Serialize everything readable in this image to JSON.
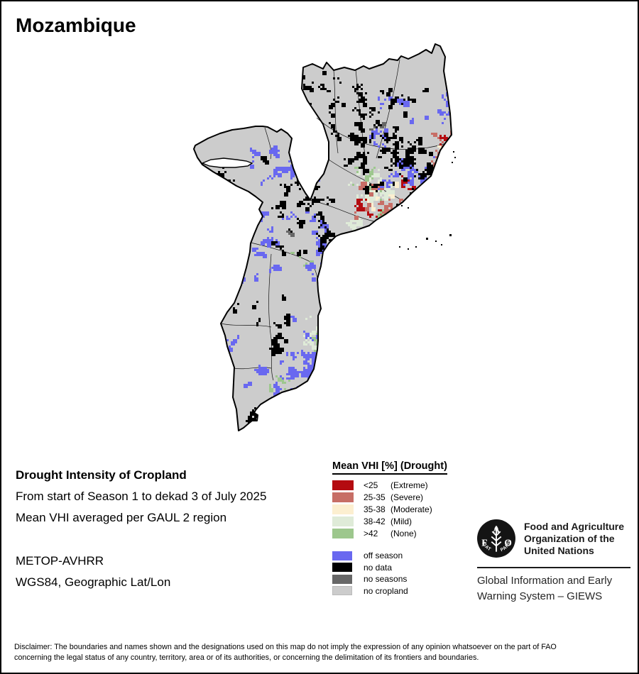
{
  "title": "Mozambique",
  "map": {
    "country": "Mozambique",
    "land_color": "#cccccc",
    "boundary_color": "#000000",
    "water_color": "#ffffff"
  },
  "info": {
    "heading": "Drought Intensity of Cropland",
    "line1": "From start of Season 1 to dekad 3 of July 2025",
    "line2": "Mean VHI averaged per GAUL 2 region",
    "sensor": "METOP-AVHRR",
    "projection": "WGS84, Geographic Lat/Lon"
  },
  "legend": {
    "title": "Mean VHI [%] (Drought)",
    "classes": [
      {
        "value": "<25",
        "label": "(Extreme)",
        "color": "#b40b10"
      },
      {
        "value": "25-35",
        "label": "(Severe)",
        "color": "#c76e66"
      },
      {
        "value": "35-38",
        "label": "(Moderate)",
        "color": "#fcefd0"
      },
      {
        "value": "38-42",
        "label": "(Mild)",
        "color": "#dfebd8"
      },
      {
        "value": ">42",
        "label": "(None)",
        "color": "#9dc78d"
      }
    ],
    "extra": [
      {
        "label": "off season",
        "color": "#6968f0"
      },
      {
        "label": "no data",
        "color": "#000000"
      },
      {
        "label": "no seasons",
        "color": "#676767"
      },
      {
        "label": "no cropland",
        "color": "#cccccc"
      }
    ]
  },
  "footer": {
    "org_line1": "Food and Agriculture",
    "org_line2": "Organization of the",
    "org_line3": "United Nations",
    "giews_line1": "Global Information and Early",
    "giews_line2": "Warning System – GIEWS",
    "logo_letter_f": "F",
    "logo_letter_a": "A",
    "logo_letter_o": "O",
    "logo_motto_left": "FIAT",
    "logo_motto_right": "PANIS"
  },
  "disclaimer": {
    "line1": "Disclaimer: The boundaries and names shown and the designations used on this map do not imply the expression of any opinion whatsoever on the part of FAO",
    "line2": "concerning the legal status of any country, territory, area or of its authorities, or concerning the delimitation of its frontiers and boundaries."
  }
}
